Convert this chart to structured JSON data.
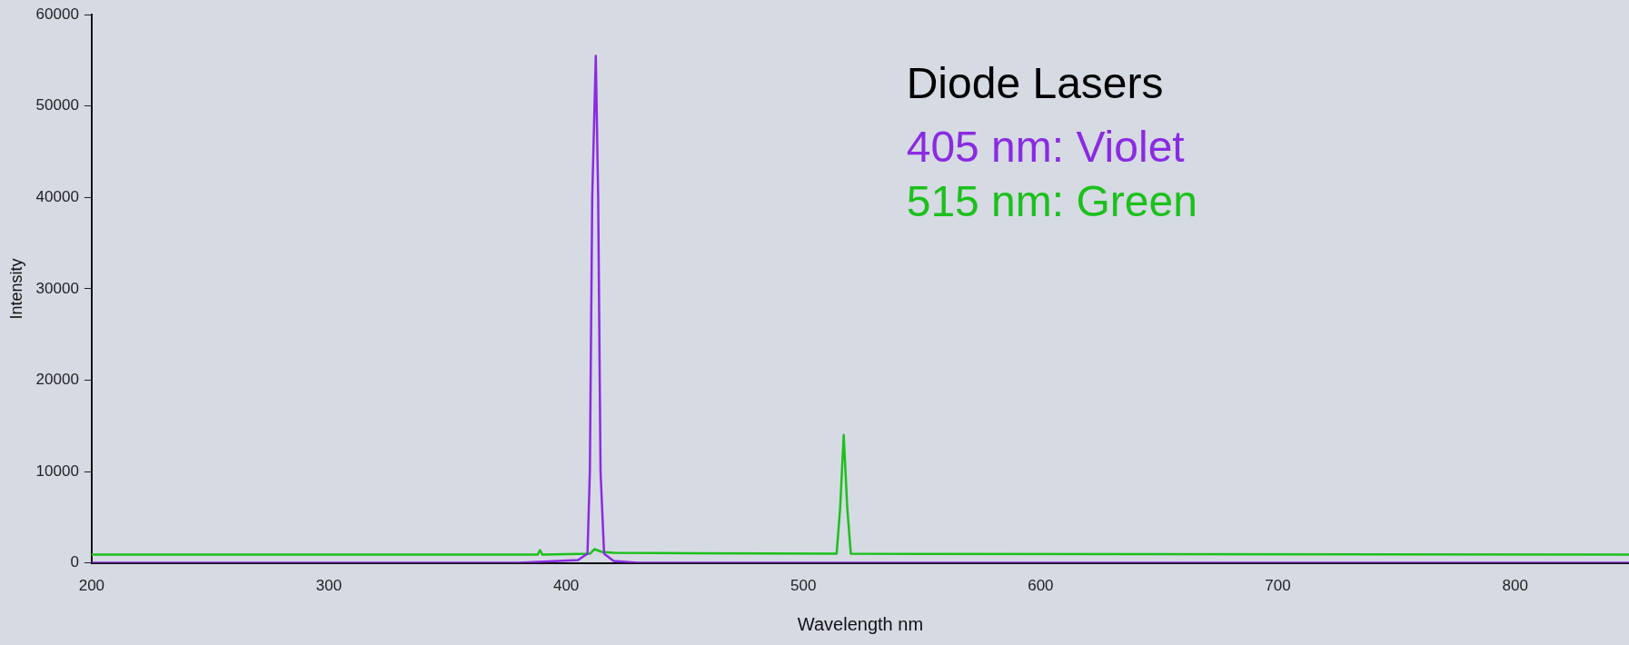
{
  "chart_data": {
    "type": "line",
    "xlabel": "Wavelength nm",
    "ylabel": "Intensity",
    "legend_title": "Diode Lasers",
    "legend": "top right",
    "marker": "none",
    "grid": false,
    "xlim": [
      200,
      848
    ],
    "xticks": [
      200,
      300,
      400,
      500,
      600,
      700,
      800
    ],
    "ylim": [
      0,
      60000
    ],
    "yticks": [
      0,
      10000,
      20000,
      30000,
      40000,
      50000,
      60000
    ],
    "series": [
      {
        "name": "405 nm: Violet",
        "color": "#8a2be2",
        "x": [
          200,
          380,
          405,
          409,
          410,
          411,
          412.5,
          413.5,
          414.5,
          416,
          420,
          430,
          848
        ],
        "values": [
          0,
          0,
          300,
          1000,
          10000,
          40000,
          55500,
          40000,
          10000,
          1000,
          200,
          0,
          0
        ]
      },
      {
        "name": "515 nm: Green",
        "color": "#1cc01c",
        "x": [
          200,
          388,
          389,
          390,
          410,
          412,
          415,
          420,
          514,
          515.5,
          517,
          518.5,
          520,
          848
        ],
        "values": [
          900,
          900,
          1400,
          900,
          1000,
          1500,
          1200,
          1100,
          1000,
          6000,
          14000,
          6000,
          1000,
          900
        ]
      }
    ]
  }
}
